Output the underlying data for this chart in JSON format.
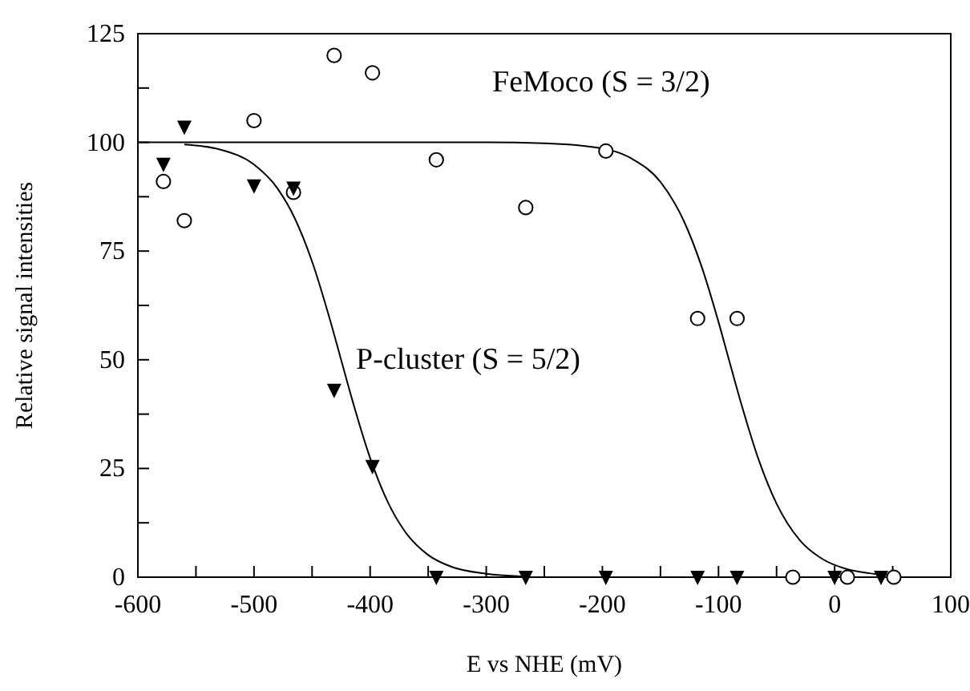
{
  "chart_data": {
    "type": "scatter",
    "xlabel": "E vs NHE (mV)",
    "ylabel": "Relative signal intensities",
    "xlim": [
      -600,
      100
    ],
    "ylim": [
      0,
      125
    ],
    "xticks": [
      -600,
      {
        "value": -550,
        "label": null
      },
      -500,
      {
        "value": -450,
        "label": null
      },
      -400,
      {
        "value": -350,
        "label": null
      },
      -300,
      {
        "value": -250,
        "label": null
      },
      -200,
      {
        "value": -150,
        "label": null
      },
      -100,
      {
        "value": -50,
        "label": null
      },
      0,
      {
        "value": 50,
        "label": null
      },
      100
    ],
    "yticks": [
      0,
      {
        "value": 12.5,
        "label": null
      },
      25,
      {
        "value": 37.5,
        "label": null
      },
      50,
      {
        "value": 62.5,
        "label": null
      },
      75,
      {
        "value": 87.5,
        "label": null
      },
      100,
      {
        "value": 112.5,
        "label": null
      },
      125
    ],
    "grid": false,
    "annotations": [
      "FeMoco (S = 3/2)",
      "P-cluster (S = 5/2)"
    ],
    "series": [
      {
        "type": "line",
        "color": "#000000",
        "marker": "none",
        "x": [
          -600,
          -300,
          -250,
          -200,
          -175,
          -150,
          -130,
          -115,
          -100,
          -91,
          -80,
          -65,
          -50,
          -30,
          -10,
          10,
          30,
          50
        ],
        "values": [
          100,
          100,
          99.8,
          98.6,
          96.3,
          90.9,
          82.0,
          71.8,
          58.7,
          50,
          39.5,
          26.7,
          16.9,
          8.5,
          4.1,
          1.9,
          0.9,
          0.4
        ]
      },
      {
        "type": "line",
        "color": "#000000",
        "marker": "none",
        "x": [
          -560,
          -530,
          -500,
          -480,
          -465,
          -450,
          -435,
          -425,
          -415,
          -400,
          -385,
          -370,
          -350,
          -330,
          -300,
          -270
        ],
        "values": [
          99.5,
          98.4,
          94.9,
          89.5,
          82.6,
          72.6,
          59.6,
          50,
          40.4,
          27.4,
          17.4,
          10.5,
          5.1,
          2.4,
          0.8,
          0.2
        ]
      },
      {
        "color": "#000000",
        "marker": "circle",
        "x": [
          -578,
          -560,
          -500,
          -466,
          -431,
          -398,
          -343,
          -266,
          -197,
          -118,
          -84,
          -36,
          11,
          51
        ],
        "values": [
          91,
          82,
          105,
          88.5,
          120,
          116,
          96,
          85,
          98,
          59.5,
          59.5,
          0,
          0,
          0
        ]
      },
      {
        "color": "#000000",
        "marker": "triangle",
        "x": [
          -578,
          -560,
          -500,
          -466,
          -431,
          -398,
          -343,
          -266,
          -197,
          -118,
          -84,
          0,
          40
        ],
        "values": [
          95,
          103.5,
          90,
          89.5,
          43,
          25.5,
          0,
          0,
          0,
          0,
          0,
          0,
          0
        ]
      }
    ]
  }
}
